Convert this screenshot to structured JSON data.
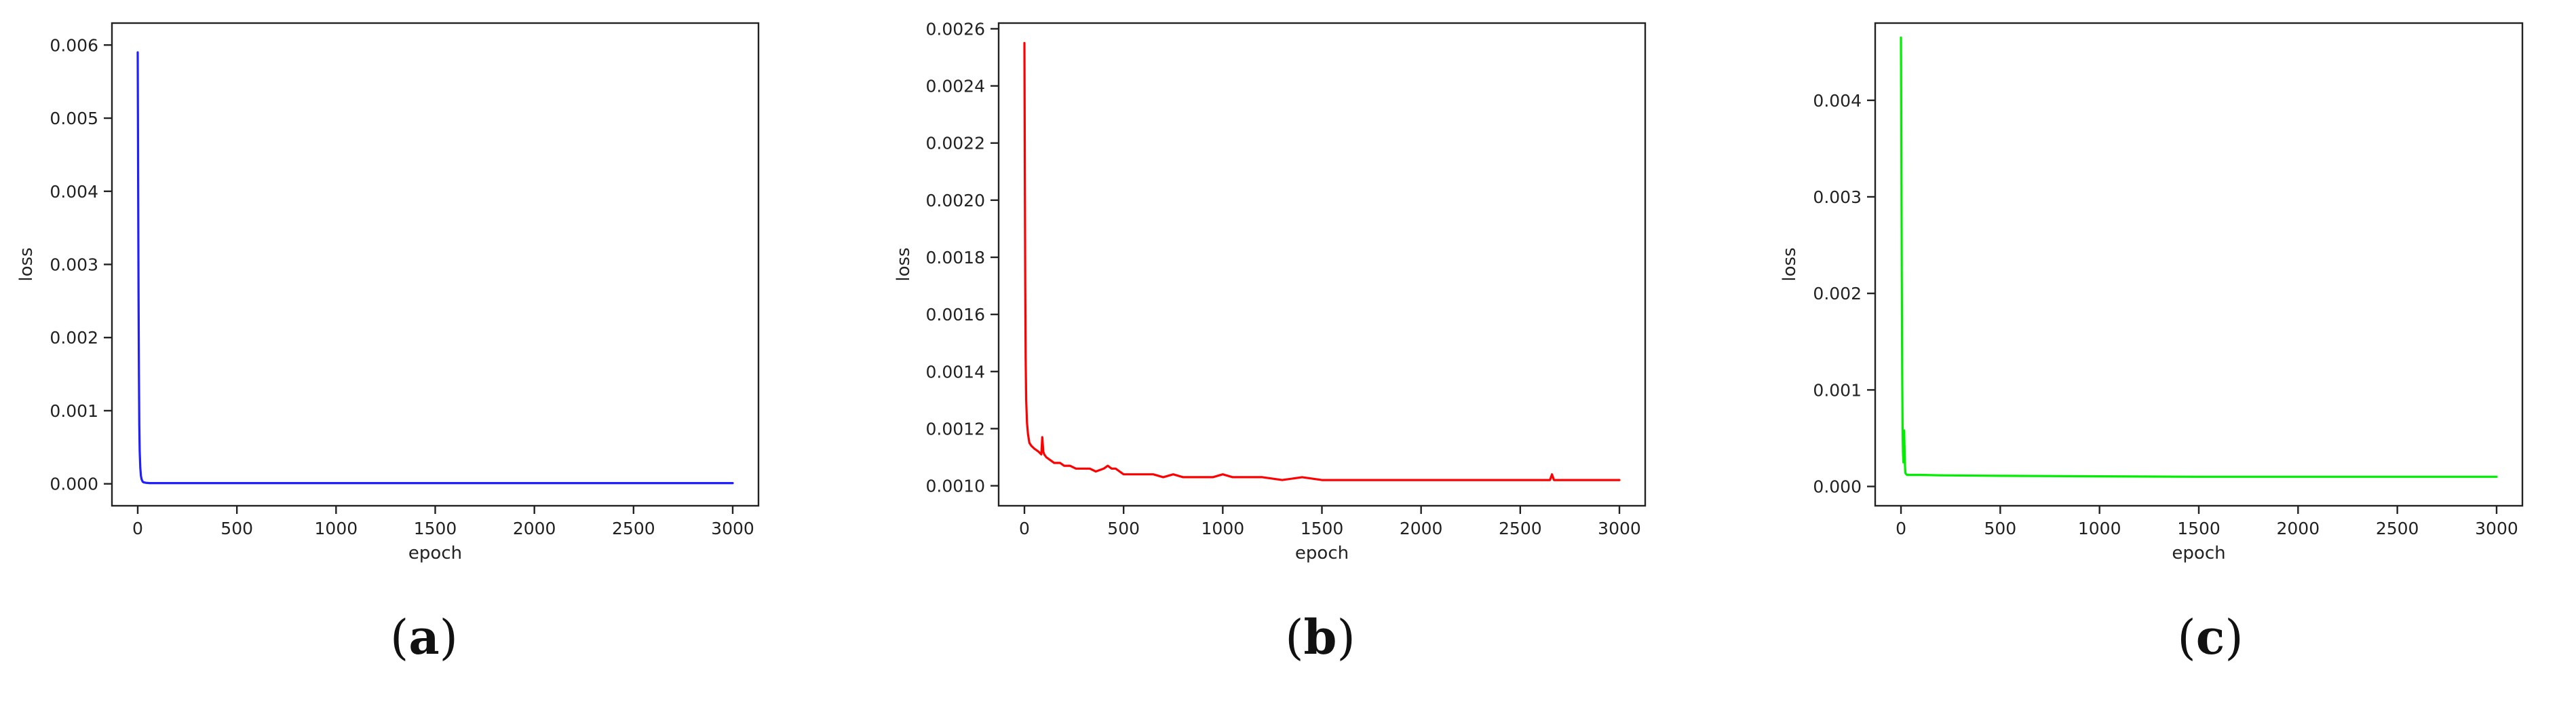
{
  "chart_data": [
    {
      "type": "line",
      "caption": "(a)",
      "caption_bold": "a",
      "xlabel": "epoch",
      "ylabel": "loss",
      "xlim": [
        -130,
        3130
      ],
      "ylim": [
        -0.0003,
        0.0063
      ],
      "xticks": [
        0,
        500,
        1000,
        1500,
        2000,
        2500,
        3000
      ],
      "xtick_labels": [
        "0",
        "500",
        "1000",
        "1500",
        "2000",
        "2500",
        "3000"
      ],
      "yticks": [
        0.0,
        0.001,
        0.002,
        0.003,
        0.004,
        0.005,
        0.006
      ],
      "ytick_labels": [
        "0.000",
        "0.001",
        "0.002",
        "0.003",
        "0.004",
        "0.005",
        "0.006"
      ],
      "grid": false,
      "series": [
        {
          "color": "#1f1fff",
          "x": [
            0,
            2,
            4,
            6,
            8,
            10,
            13,
            16,
            20,
            25,
            30,
            40,
            60,
            100,
            200,
            500,
            1000,
            1500,
            2000,
            2500,
            3000
          ],
          "y": [
            0.0059,
            0.0042,
            0.0026,
            0.0015,
            0.0008,
            0.00045,
            0.00022,
            0.00011,
            6e-05,
            3e-05,
            2e-05,
            1.5e-05,
            1e-05,
            1e-05,
            1e-05,
            1e-05,
            1e-05,
            1e-05,
            1e-05,
            1e-05,
            1e-05
          ]
        }
      ]
    },
    {
      "type": "line",
      "caption": "(b)",
      "caption_bold": "b",
      "xlabel": "epoch",
      "ylabel": "loss",
      "xlim": [
        -130,
        3130
      ],
      "ylim": [
        0.00093,
        0.00262
      ],
      "xticks": [
        0,
        500,
        1000,
        1500,
        2000,
        2500,
        3000
      ],
      "xtick_labels": [
        "0",
        "500",
        "1000",
        "1500",
        "2000",
        "2500",
        "3000"
      ],
      "yticks": [
        0.001,
        0.0012,
        0.0014,
        0.0016,
        0.0018,
        0.002,
        0.0022,
        0.0024,
        0.0026
      ],
      "ytick_labels": [
        "0.0010",
        "0.0012",
        "0.0014",
        "0.0016",
        "0.0018",
        "0.0020",
        "0.0022",
        "0.0024",
        "0.0026"
      ],
      "grid": false,
      "series": [
        {
          "color": "#ff0000",
          "x": [
            0,
            2,
            4,
            6,
            9,
            13,
            18,
            25,
            35,
            50,
            70,
            85,
            90,
            95,
            100,
            110,
            130,
            150,
            180,
            200,
            230,
            260,
            300,
            330,
            360,
            400,
            420,
            440,
            460,
            480,
            500,
            550,
            600,
            650,
            700,
            750,
            800,
            850,
            900,
            950,
            1000,
            1050,
            1100,
            1200,
            1300,
            1400,
            1500,
            1600,
            1700,
            1800,
            1900,
            2000,
            2100,
            2200,
            2300,
            2400,
            2500,
            2600,
            2650,
            2660,
            2670,
            2700,
            2800,
            2900,
            3000
          ],
          "y": [
            0.00255,
            0.0021,
            0.0017,
            0.00145,
            0.0013,
            0.00122,
            0.00118,
            0.00115,
            0.00114,
            0.00113,
            0.00112,
            0.00111,
            0.00117,
            0.00112,
            0.00111,
            0.0011,
            0.00109,
            0.00108,
            0.00108,
            0.00107,
            0.00107,
            0.00106,
            0.00106,
            0.00106,
            0.00105,
            0.00106,
            0.00107,
            0.00106,
            0.00106,
            0.00105,
            0.00104,
            0.00104,
            0.00104,
            0.00104,
            0.00103,
            0.00104,
            0.00103,
            0.00103,
            0.00103,
            0.00103,
            0.00104,
            0.00103,
            0.00103,
            0.00103,
            0.00102,
            0.00103,
            0.00102,
            0.00102,
            0.00102,
            0.00102,
            0.00102,
            0.00102,
            0.00102,
            0.00102,
            0.00102,
            0.00102,
            0.00102,
            0.00102,
            0.00102,
            0.00104,
            0.00102,
            0.00102,
            0.00102,
            0.00102,
            0.00102
          ]
        }
      ]
    },
    {
      "type": "line",
      "caption": "(c)",
      "caption_bold": "c",
      "xlabel": "epoch",
      "ylabel": "loss",
      "xlim": [
        -130,
        3130
      ],
      "ylim": [
        -0.0002,
        0.0048
      ],
      "xticks": [
        0,
        500,
        1000,
        1500,
        2000,
        2500,
        3000
      ],
      "xtick_labels": [
        "0",
        "500",
        "1000",
        "1500",
        "2000",
        "2500",
        "3000"
      ],
      "yticks": [
        0.0,
        0.001,
        0.002,
        0.003,
        0.004
      ],
      "ytick_labels": [
        "0.000",
        "0.001",
        "0.002",
        "0.003",
        "0.004"
      ],
      "grid": false,
      "series": [
        {
          "color": "#00ee00",
          "x": [
            0,
            2,
            4,
            6,
            8,
            10,
            12,
            14,
            16,
            18,
            20,
            22,
            25,
            30,
            40,
            60,
            100,
            200,
            500,
            1000,
            1500,
            2000,
            2500,
            3000
          ],
          "y": [
            0.00465,
            0.0035,
            0.0022,
            0.0012,
            0.0006,
            0.00035,
            0.00025,
            0.00045,
            0.00058,
            0.0004,
            0.00022,
            0.00014,
            0.00013,
            0.00012,
            0.00012,
            0.00012,
            0.00012,
            0.000115,
            0.00011,
            0.000105,
            0.0001,
            0.0001,
            0.0001,
            0.0001
          ]
        }
      ]
    }
  ]
}
